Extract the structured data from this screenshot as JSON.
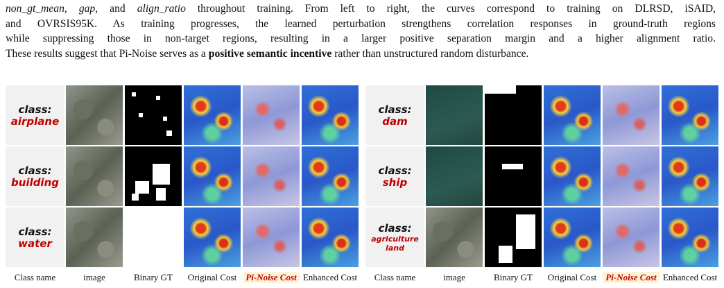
{
  "paragraph": {
    "lines": [
      [
        {
          "text": "non_gt_mean",
          "style": "italic"
        },
        {
          "text": ", "
        },
        {
          "text": "gap",
          "style": "italic"
        },
        {
          "text": ", and "
        },
        {
          "text": "align_ratio",
          "style": "italic"
        },
        {
          "text": " throughout training. From left to right, the curves correspond to training on DLRSD, iSAID,"
        }
      ],
      [
        {
          "text": "and OVRSIS95K. As training progresses, the learned perturbation strengthens correlation responses in ground-truth regions"
        }
      ],
      [
        {
          "text": "while suppressing those in non-target regions, resulting in a larger positive separation margin and a higher alignment ratio."
        }
      ],
      [
        {
          "text": "These results suggest that Pi-Noise serves as a "
        },
        {
          "text": "positive semantic incentive",
          "style": "bold"
        },
        {
          "text": " rather than unstructured random disturbance."
        }
      ]
    ]
  },
  "figure": {
    "panels": [
      {
        "rows": [
          {
            "prefix": "class:",
            "name": "airplane"
          },
          {
            "prefix": "class:",
            "name": "building"
          },
          {
            "prefix": "class:",
            "name": "water"
          }
        ],
        "columns": [
          "Class name",
          "image",
          "Binary GT",
          "Original Cost",
          "Pi-Noise Cost",
          "Enhanced Cost"
        ]
      },
      {
        "rows": [
          {
            "prefix": "class:",
            "name": "dam"
          },
          {
            "prefix": "class:",
            "name": "ship"
          },
          {
            "prefix": "class:",
            "name": "agriculture land"
          }
        ],
        "columns": [
          "Class name",
          "image",
          "Binary GT",
          "Original Cost",
          "Pi-Noise Cost",
          "Enhanced Cost"
        ]
      }
    ]
  }
}
